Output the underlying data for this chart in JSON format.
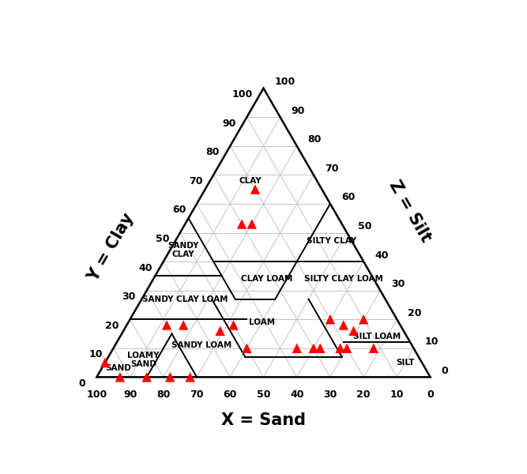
{
  "xlabel": "X = Sand",
  "ylabel": "Y = Clay",
  "zlabel": "Z = Silt",
  "grid_color": "#b8c4d0",
  "fontsize_ticks": 9,
  "fontsize_axis": 15,
  "fontsize_soil": 7.5,
  "point_color": "#ff0000",
  "point_size": 80,
  "boundary_lw": 1.4,
  "grid_lw": 0.7,
  "outer_lw": 1.8,
  "soil_labels": [
    {
      "name": "CLAY",
      "sand": 20,
      "clay": 68
    },
    {
      "name": "SILTY CLAY",
      "sand": 6,
      "clay": 47
    },
    {
      "name": "SANDY\nCLAY",
      "sand": 52,
      "clay": 44
    },
    {
      "name": "CLAY LOAM",
      "sand": 32,
      "clay": 34
    },
    {
      "name": "SILTY CLAY LOAM",
      "sand": 9,
      "clay": 34
    },
    {
      "name": "SANDY CLAY LOAM",
      "sand": 60,
      "clay": 27
    },
    {
      "name": "LOAM",
      "sand": 41,
      "clay": 19
    },
    {
      "name": "SILT LOAM",
      "sand": 9,
      "clay": 14
    },
    {
      "name": "SILT",
      "sand": 5,
      "clay": 5
    },
    {
      "name": "SANDY LOAM",
      "sand": 63,
      "clay": 11
    },
    {
      "name": "LOAMY\nSAND",
      "sand": 83,
      "clay": 6
    },
    {
      "name": "SAND",
      "sand": 92,
      "clay": 3
    }
  ],
  "data_points": [
    [
      20,
      65
    ],
    [
      30,
      53
    ],
    [
      27,
      53
    ],
    [
      20,
      20
    ],
    [
      17,
      18
    ],
    [
      15,
      16
    ],
    [
      12,
      10
    ],
    [
      10,
      20
    ],
    [
      20,
      10
    ],
    [
      22,
      10
    ],
    [
      28,
      10
    ],
    [
      30,
      10
    ],
    [
      50,
      10
    ],
    [
      50,
      18
    ],
    [
      55,
      16
    ],
    [
      65,
      18
    ],
    [
      70,
      18
    ],
    [
      72,
      0
    ],
    [
      78,
      0
    ],
    [
      85,
      0
    ],
    [
      93,
      0
    ],
    [
      95,
      5
    ],
    [
      35,
      10
    ]
  ],
  "boundary_lines": [
    [
      [
        0,
        40
      ],
      [
        45,
        40
      ]
    ],
    [
      [
        0,
        60
      ],
      [
        20,
        40
      ]
    ],
    [
      [
        20,
        40
      ],
      [
        33,
        27
      ]
    ],
    [
      [
        33,
        27
      ],
      [
        45,
        27
      ]
    ],
    [
      [
        45,
        27
      ],
      [
        45,
        55
      ]
    ],
    [
      [
        45,
        35
      ],
      [
        65,
        35
      ]
    ],
    [
      [
        45,
        20
      ],
      [
        80,
        20
      ]
    ],
    [
      [
        52,
        7
      ],
      [
        52,
        27
      ]
    ],
    [
      [
        23,
        7
      ],
      [
        52,
        7
      ]
    ],
    [
      [
        23,
        7
      ],
      [
        23,
        27
      ]
    ],
    [
      [
        0,
        12
      ],
      [
        20,
        12
      ]
    ],
    [
      [
        70,
        15
      ],
      [
        85,
        0
      ]
    ],
    [
      [
        70,
        0
      ],
      [
        70,
        15
      ]
    ]
  ]
}
